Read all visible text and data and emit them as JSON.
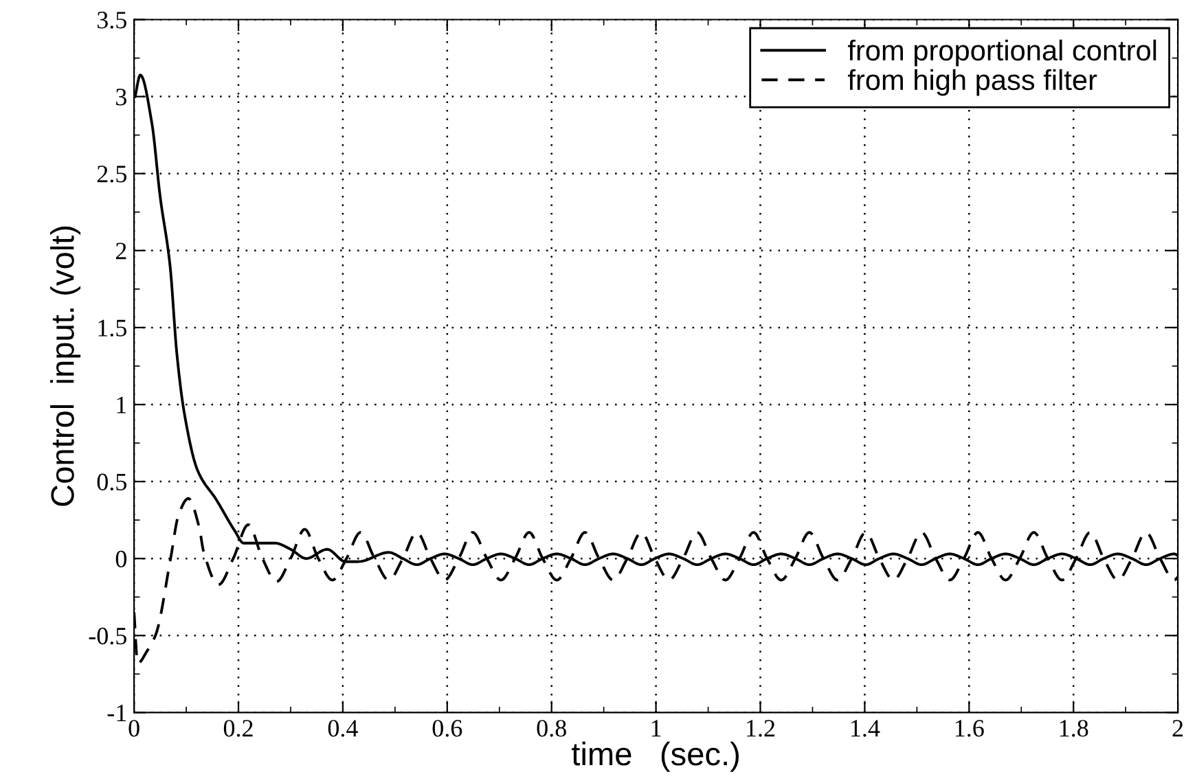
{
  "chart_data": {
    "type": "line",
    "xlabel": "time   (sec.)",
    "ylabel": "Control  input. (volt)",
    "xlim": [
      0,
      2
    ],
    "ylim": [
      -1,
      3.5
    ],
    "xticks": [
      0,
      0.2,
      0.4,
      0.6,
      0.8,
      1,
      1.2,
      1.4,
      1.6,
      1.8,
      2
    ],
    "yticks": [
      -1,
      -0.5,
      0,
      0.5,
      1,
      1.5,
      2,
      2.5,
      3,
      3.5
    ],
    "grid": true,
    "legend": "top right",
    "series": [
      {
        "name": "from proportional control",
        "color": "#000000",
        "line_style": "solid",
        "x": [
          0.002,
          0.012,
          0.034,
          0.05,
          0.069,
          0.082,
          0.096,
          0.122,
          0.158,
          0.193,
          0.21,
          0.246,
          0.27,
          0.3,
          0.33,
          0.37,
          0.405,
          0.43,
          0.488,
          0.515,
          0.542,
          0.568,
          0.595,
          0.622,
          0.649,
          0.676,
          0.703,
          0.73,
          0.757,
          0.783,
          0.81,
          0.837,
          0.864,
          0.891,
          0.918,
          0.945,
          0.972,
          0.998,
          1.025,
          1.052,
          1.079,
          1.106,
          1.133,
          1.16,
          1.187,
          1.213,
          1.24,
          1.267,
          1.294,
          1.321,
          1.348,
          1.375,
          1.402,
          1.428,
          1.455,
          1.482,
          1.509,
          1.536,
          1.563,
          1.59,
          1.617,
          1.643,
          1.67,
          1.697,
          1.724,
          1.751,
          1.778,
          1.805,
          1.832,
          1.858,
          1.885,
          1.912,
          1.939,
          1.966,
          1.993,
          2.0
        ],
        "values": [
          3.0,
          3.14,
          2.83,
          2.35,
          1.9,
          1.33,
          0.95,
          0.57,
          0.38,
          0.18,
          0.1,
          0.1,
          0.1,
          0.06,
          0,
          0.06,
          -0.02,
          -0.02,
          0.04,
          0,
          -0.04,
          0,
          0.03,
          0,
          -0.04,
          0,
          0.03,
          0,
          -0.04,
          0,
          0.03,
          0,
          -0.04,
          0,
          0.03,
          0,
          -0.04,
          0,
          0.03,
          0,
          -0.04,
          0,
          0.03,
          0,
          -0.04,
          0,
          0.03,
          0,
          -0.04,
          0,
          0.03,
          0,
          -0.04,
          0,
          0.03,
          0,
          -0.04,
          0,
          0.03,
          0,
          -0.04,
          0,
          0.03,
          0,
          -0.04,
          0,
          0.03,
          0,
          -0.04,
          0,
          0.03,
          0,
          -0.04,
          0,
          0.03,
          0.02
        ]
      },
      {
        "name": "from high pass filter",
        "color": "#000000",
        "line_style": "dashed",
        "x": [
          0,
          0.007,
          0.025,
          0.042,
          0.07,
          0.085,
          0.104,
          0.125,
          0.133,
          0.162,
          0.19,
          0.219,
          0.246,
          0.273,
          0.3,
          0.327,
          0.353,
          0.38,
          0.407,
          0.434,
          0.461,
          0.488,
          0.515,
          0.542,
          0.568,
          0.595,
          0.622,
          0.649,
          0.676,
          0.703,
          0.73,
          0.757,
          0.783,
          0.81,
          0.837,
          0.864,
          0.891,
          0.918,
          0.945,
          0.972,
          0.998,
          1.025,
          1.052,
          1.079,
          1.106,
          1.133,
          1.16,
          1.187,
          1.213,
          1.24,
          1.267,
          1.294,
          1.321,
          1.348,
          1.375,
          1.402,
          1.428,
          1.455,
          1.482,
          1.509,
          1.536,
          1.563,
          1.59,
          1.617,
          1.643,
          1.67,
          1.697,
          1.724,
          1.751,
          1.778,
          1.805,
          1.832,
          1.858,
          1.885,
          1.912,
          1.939,
          1.966,
          1.993,
          2.0
        ],
        "values": [
          -0.35,
          -0.68,
          -0.6,
          -0.49,
          0,
          0.28,
          0.39,
          0.2,
          0.05,
          -0.17,
          0,
          0.22,
          0,
          -0.15,
          0,
          0.19,
          0,
          -0.14,
          0,
          0.17,
          0,
          -0.14,
          0,
          0.17,
          0,
          -0.14,
          0,
          0.17,
          0,
          -0.14,
          0,
          0.17,
          0,
          -0.14,
          0,
          0.17,
          0,
          -0.14,
          0,
          0.17,
          0,
          -0.14,
          0,
          0.17,
          0,
          -0.14,
          0,
          0.17,
          0,
          -0.14,
          0,
          0.17,
          0,
          -0.14,
          0,
          0.17,
          0,
          -0.14,
          0,
          0.17,
          0,
          -0.14,
          0,
          0.17,
          0,
          -0.14,
          0,
          0.17,
          0,
          -0.14,
          0,
          0.17,
          0,
          -0.14,
          0,
          0.17,
          0,
          -0.14,
          -0.12
        ]
      }
    ]
  }
}
